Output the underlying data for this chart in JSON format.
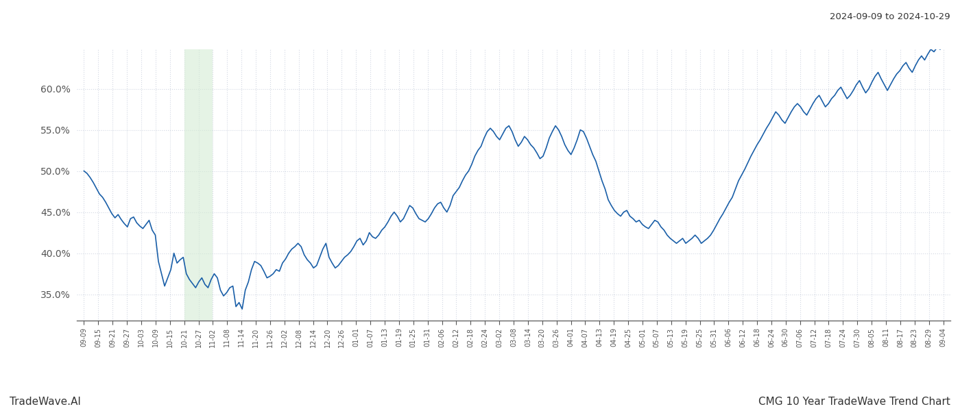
{
  "title_right": "2024-09-09 to 2024-10-29",
  "footer_left": "TradeWave.AI",
  "footer_right": "CMG 10 Year TradeWave Trend Chart",
  "background_color": "#ffffff",
  "line_color": "#1a5fa8",
  "line_width": 1.2,
  "shade_color": "#d4ecd4",
  "shade_alpha": 0.6,
  "ylim": [
    0.318,
    0.648
  ],
  "yticks": [
    0.35,
    0.4,
    0.45,
    0.5,
    0.55,
    0.6
  ],
  "grid_color": "#c0c8d8",
  "grid_alpha": 0.7,
  "grid_style": ":",
  "x_labels": [
    "09-09",
    "09-15",
    "09-21",
    "09-27",
    "10-03",
    "10-09",
    "10-15",
    "10-21",
    "10-27",
    "11-02",
    "11-08",
    "11-14",
    "11-20",
    "11-26",
    "12-02",
    "12-08",
    "12-14",
    "12-20",
    "12-26",
    "01-01",
    "01-07",
    "01-13",
    "01-19",
    "01-25",
    "01-31",
    "02-06",
    "02-12",
    "02-18",
    "02-24",
    "03-02",
    "03-08",
    "03-14",
    "03-20",
    "03-26",
    "04-01",
    "04-07",
    "04-13",
    "04-19",
    "04-25",
    "05-01",
    "05-07",
    "05-13",
    "05-19",
    "05-25",
    "05-31",
    "06-06",
    "06-12",
    "06-18",
    "06-24",
    "06-30",
    "07-06",
    "07-12",
    "07-18",
    "07-24",
    "07-30",
    "08-05",
    "08-11",
    "08-17",
    "08-23",
    "08-29",
    "09-04"
  ],
  "shade_start_label": "10-21",
  "shade_end_label": "11-02",
  "y_values": [
    0.5,
    0.497,
    0.492,
    0.486,
    0.479,
    0.472,
    0.468,
    0.462,
    0.455,
    0.448,
    0.443,
    0.447,
    0.441,
    0.436,
    0.432,
    0.442,
    0.444,
    0.437,
    0.433,
    0.43,
    0.435,
    0.44,
    0.428,
    0.422,
    0.39,
    0.375,
    0.36,
    0.37,
    0.38,
    0.4,
    0.388,
    0.392,
    0.395,
    0.375,
    0.368,
    0.363,
    0.358,
    0.365,
    0.37,
    0.362,
    0.358,
    0.368,
    0.375,
    0.37,
    0.355,
    0.348,
    0.352,
    0.358,
    0.36,
    0.335,
    0.34,
    0.332,
    0.355,
    0.365,
    0.38,
    0.39,
    0.388,
    0.385,
    0.378,
    0.37,
    0.372,
    0.375,
    0.38,
    0.378,
    0.388,
    0.393,
    0.4,
    0.405,
    0.408,
    0.412,
    0.408,
    0.398,
    0.392,
    0.388,
    0.382,
    0.385,
    0.395,
    0.405,
    0.412,
    0.395,
    0.388,
    0.382,
    0.385,
    0.39,
    0.395,
    0.398,
    0.402,
    0.408,
    0.415,
    0.418,
    0.41,
    0.415,
    0.425,
    0.42,
    0.418,
    0.422,
    0.428,
    0.432,
    0.438,
    0.445,
    0.45,
    0.445,
    0.438,
    0.442,
    0.45,
    0.458,
    0.455,
    0.448,
    0.442,
    0.44,
    0.438,
    0.442,
    0.448,
    0.455,
    0.46,
    0.462,
    0.455,
    0.45,
    0.458,
    0.47,
    0.475,
    0.48,
    0.488,
    0.495,
    0.5,
    0.508,
    0.518,
    0.525,
    0.53,
    0.54,
    0.548,
    0.552,
    0.548,
    0.542,
    0.538,
    0.545,
    0.552,
    0.555,
    0.548,
    0.538,
    0.53,
    0.535,
    0.542,
    0.538,
    0.532,
    0.528,
    0.522,
    0.515,
    0.518,
    0.528,
    0.54,
    0.548,
    0.555,
    0.55,
    0.542,
    0.532,
    0.525,
    0.52,
    0.528,
    0.538,
    0.55,
    0.548,
    0.54,
    0.53,
    0.52,
    0.512,
    0.5,
    0.488,
    0.478,
    0.465,
    0.458,
    0.452,
    0.448,
    0.445,
    0.45,
    0.452,
    0.445,
    0.442,
    0.438,
    0.44,
    0.435,
    0.432,
    0.43,
    0.435,
    0.44,
    0.438,
    0.432,
    0.428,
    0.422,
    0.418,
    0.415,
    0.412,
    0.415,
    0.418,
    0.412,
    0.415,
    0.418,
    0.422,
    0.418,
    0.412,
    0.415,
    0.418,
    0.422,
    0.428,
    0.435,
    0.442,
    0.448,
    0.455,
    0.462,
    0.468,
    0.478,
    0.488,
    0.495,
    0.502,
    0.51,
    0.518,
    0.525,
    0.532,
    0.538,
    0.545,
    0.552,
    0.558,
    0.565,
    0.572,
    0.568,
    0.562,
    0.558,
    0.565,
    0.572,
    0.578,
    0.582,
    0.578,
    0.572,
    0.568,
    0.575,
    0.582,
    0.588,
    0.592,
    0.585,
    0.578,
    0.582,
    0.588,
    0.592,
    0.598,
    0.602,
    0.595,
    0.588,
    0.592,
    0.598,
    0.605,
    0.61,
    0.602,
    0.595,
    0.6,
    0.608,
    0.615,
    0.62,
    0.612,
    0.605,
    0.598,
    0.605,
    0.612,
    0.618,
    0.622,
    0.628,
    0.632,
    0.625,
    0.62,
    0.628,
    0.635,
    0.64,
    0.635,
    0.642,
    0.648,
    0.645,
    0.65,
    0.648,
    0.652
  ]
}
